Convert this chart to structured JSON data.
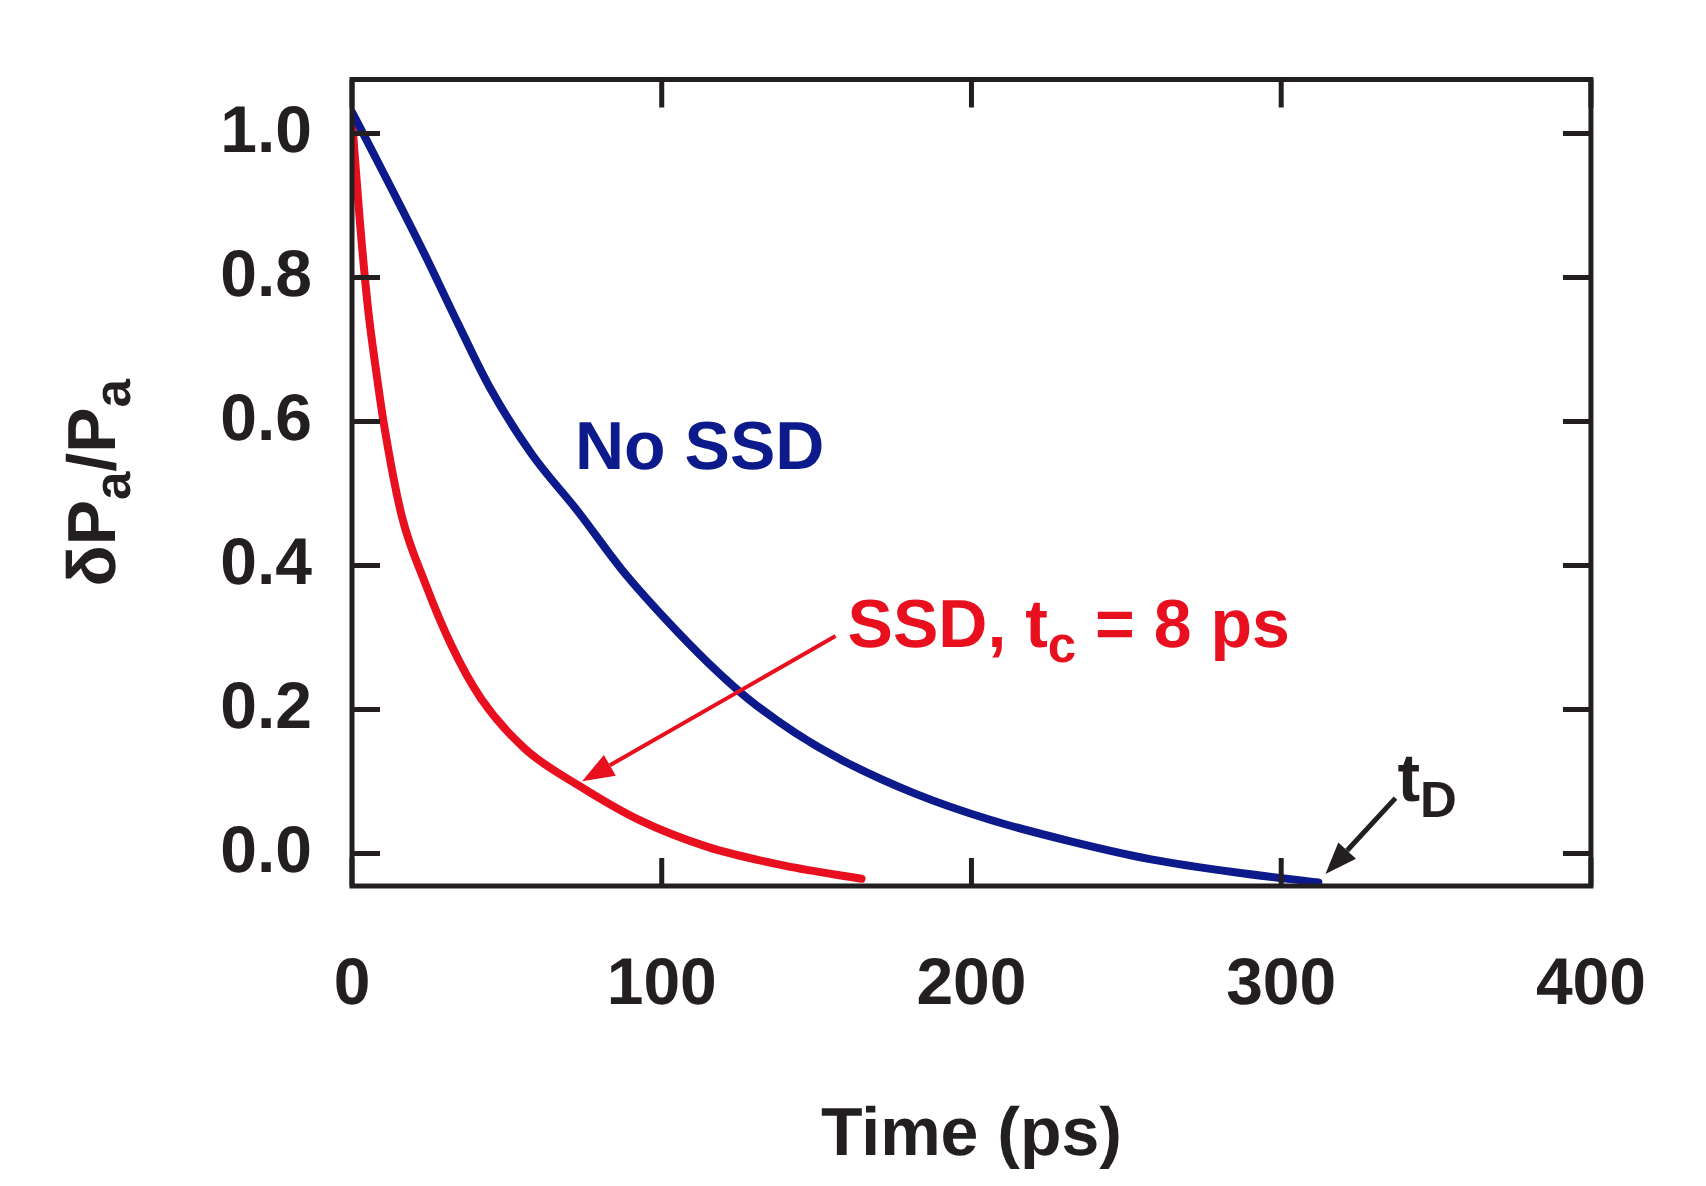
{
  "chart_data": {
    "type": "line",
    "xlabel": "Time (ps)",
    "ylabel": "δP$_{a}$/P$_{a}$",
    "xlim": [
      0,
      400
    ],
    "xticks": [
      0,
      100,
      200,
      300,
      400
    ],
    "ylim": [
      -0.045,
      1.075
    ],
    "yticks": [
      {
        "value": 0,
        "label": "0.0"
      },
      {
        "value": 0.2,
        "label": "0.2"
      },
      {
        "value": 0.4,
        "label": "0.4"
      },
      {
        "value": 0.6,
        "label": "0.6"
      },
      {
        "value": 0.8,
        "label": "0.8"
      },
      {
        "value": 1,
        "label": "1.0"
      }
    ],
    "grid": false,
    "legend": false,
    "marker": "none",
    "line_style": "solid",
    "series": [
      {
        "name": "No SSD",
        "color": "#0d1a8c",
        "x": [
          0,
          12,
          23.5,
          34,
          44.4,
          58,
          73,
          87,
          101.8,
          115,
          127.9,
          143,
          159,
          182,
          206,
          232,
          258,
          285,
          312
        ],
        "values": [
          1.03,
          0.93,
          0.832,
          0.738,
          0.648,
          0.555,
          0.475,
          0.395,
          0.323,
          0.265,
          0.215,
          0.168,
          0.128,
          0.083,
          0.047,
          0.017,
          -0.008,
          -0.026,
          -0.04
        ]
      },
      {
        "name": "SSD, t$_{c}$ = 8 ps",
        "color": "#e8101e",
        "x": [
          0,
          2.5,
          5.2,
          7.8,
          10.4,
          16,
          23.5,
          32,
          41.7,
          56,
          73,
          93,
          115,
          140,
          164.5
        ],
        "values": [
          1.02,
          0.88,
          0.756,
          0.67,
          0.594,
          0.47,
          0.377,
          0.29,
          0.215,
          0.145,
          0.095,
          0.046,
          0.009,
          -0.017,
          -0.035
        ]
      }
    ],
    "annotations": [
      {
        "text": "t$_{D}$",
        "x": 313,
        "y": -0.034
      }
    ]
  }
}
